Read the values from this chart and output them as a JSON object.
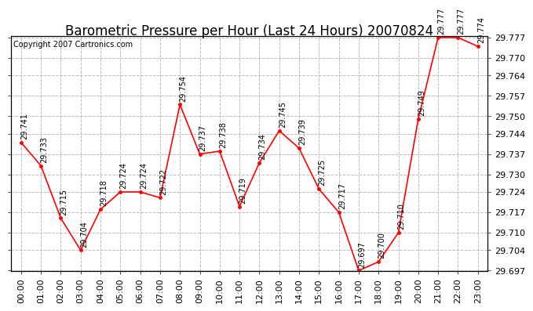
{
  "title": "Barometric Pressure per Hour (Last 24 Hours) 20070824",
  "copyright": "Copyright 2007 Cartronics.com",
  "hours": [
    "00:00",
    "01:00",
    "02:00",
    "03:00",
    "04:00",
    "05:00",
    "06:00",
    "07:00",
    "08:00",
    "09:00",
    "10:00",
    "11:00",
    "12:00",
    "13:00",
    "14:00",
    "15:00",
    "16:00",
    "17:00",
    "18:00",
    "19:00",
    "20:00",
    "21:00",
    "22:00",
    "23:00"
  ],
  "values": [
    29.741,
    29.733,
    29.715,
    29.704,
    29.718,
    29.724,
    29.724,
    29.722,
    29.754,
    29.737,
    29.738,
    29.719,
    29.734,
    29.745,
    29.739,
    29.725,
    29.717,
    29.697,
    29.7,
    29.71,
    29.749,
    29.777,
    29.777,
    29.774
  ],
  "ylim_min": 29.697,
  "ylim_max": 29.777,
  "line_color": "red",
  "marker_color": "red",
  "bg_color": "white",
  "plot_bg_color": "white",
  "grid_color": "#bbbbbb",
  "title_fontsize": 12,
  "copyright_fontsize": 7,
  "label_fontsize": 7,
  "tick_fontsize": 8,
  "ytick_step": 0.007,
  "yticks": [
    29.697,
    29.704,
    29.71,
    29.717,
    29.724,
    29.73,
    29.737,
    29.744,
    29.75,
    29.757,
    29.764,
    29.77,
    29.777
  ]
}
